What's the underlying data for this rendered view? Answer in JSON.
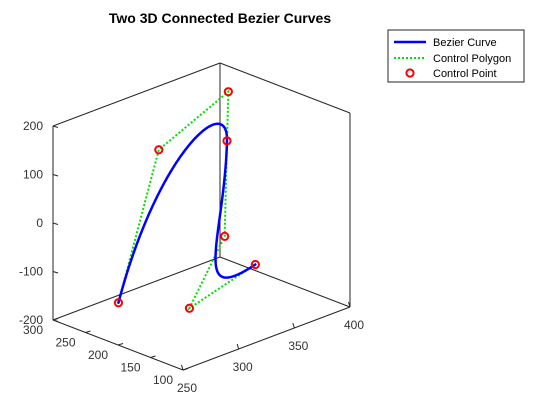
{
  "chart_data": {
    "type": "line",
    "title": "Two 3D Connected Bezier Curves",
    "xlabel": "",
    "ylabel": "",
    "zlabel": "",
    "view": "3d",
    "xlim": [
      250,
      400
    ],
    "ylim": [
      100,
      300
    ],
    "zlim": [
      -200,
      200
    ],
    "x_ticks": [
      250,
      300,
      350,
      400
    ],
    "y_ticks": [
      100,
      150,
      200,
      250,
      300
    ],
    "z_ticks": [
      -200,
      -100,
      0,
      100,
      200
    ],
    "grid": false,
    "box": true,
    "legend": {
      "location": "top-right",
      "entries": [
        {
          "label": "Bezier Curve",
          "color": "#0000ff",
          "style": "solid"
        },
        {
          "label": "Control Polygon",
          "color": "#00e000",
          "style": "dotted"
        },
        {
          "label": "Control Point",
          "color": "#ff0000",
          "style": "circle-marker"
        }
      ]
    },
    "series": [
      {
        "name": "Bezier Curve",
        "segments": [
          {
            "control_points": [
              [
                300,
                285,
                -200
              ],
              [
                310,
                240,
                130
              ],
              [
                390,
                270,
                165
              ],
              [
                380,
                255,
                80
              ]
            ]
          },
          {
            "control_points": [
              [
                380,
                255,
                80
              ],
              [
                375,
                250,
                -110
              ],
              [
                320,
                210,
                -190
              ],
              [
                350,
                160,
                -100
              ]
            ]
          }
        ]
      }
    ],
    "control_points": [
      [
        300,
        285,
        -200
      ],
      [
        310,
        240,
        130
      ],
      [
        390,
        270,
        165
      ],
      [
        380,
        255,
        80
      ],
      [
        375,
        250,
        -110
      ],
      [
        320,
        210,
        -190
      ],
      [
        350,
        160,
        -100
      ]
    ]
  }
}
